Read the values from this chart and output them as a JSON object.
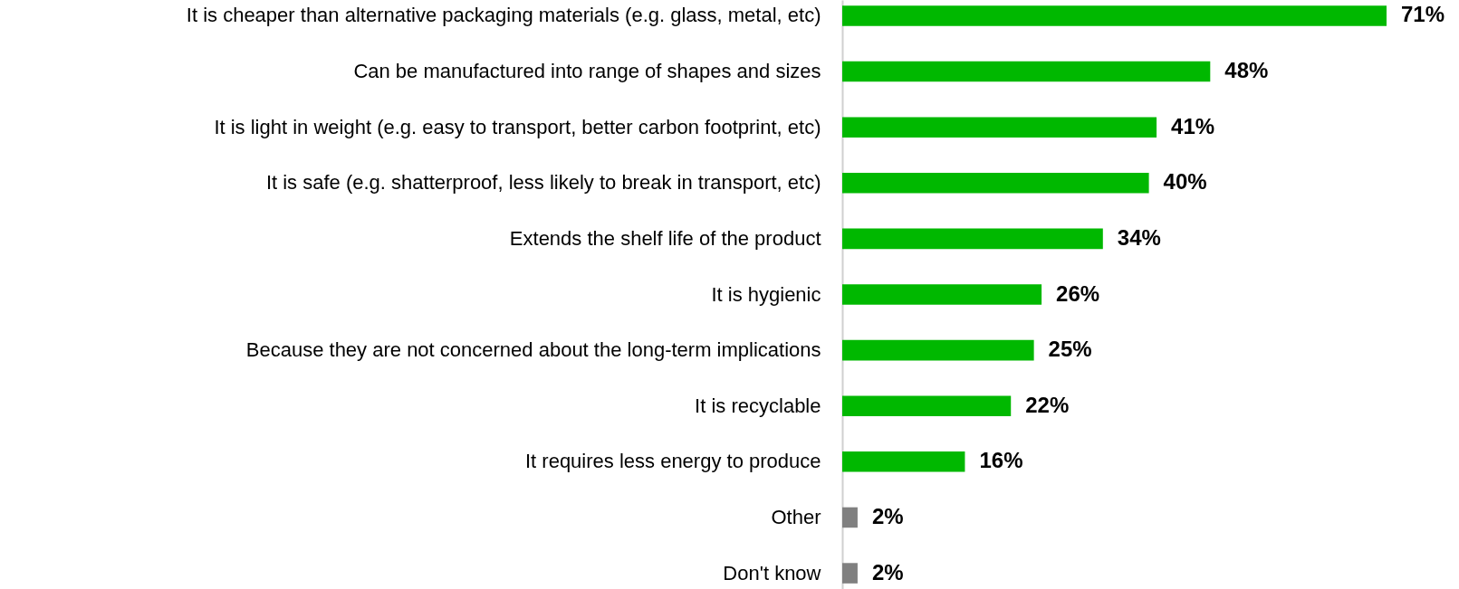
{
  "chart_data": {
    "type": "bar",
    "orientation": "horizontal",
    "categories": [
      "It is cheaper than alternative packaging materials (e.g. glass, metal, etc)",
      "Can be manufactured into range of shapes and sizes",
      "It is light in weight (e.g. easy to transport, better carbon footprint, etc)",
      "It is safe (e.g. shatterproof, less likely to break in transport, etc)",
      "Extends the shelf life of the product",
      "It is hygienic",
      "Because they are not concerned about the long-term implications",
      "It is recyclable",
      "It requires less energy to produce",
      "Other",
      "Don't know"
    ],
    "values": [
      71,
      48,
      41,
      40,
      34,
      26,
      25,
      22,
      16,
      2,
      2
    ],
    "colors": [
      "#00b800",
      "#00b800",
      "#00b800",
      "#00b800",
      "#00b800",
      "#00b800",
      "#00b800",
      "#00b800",
      "#00b800",
      "#808080",
      "#808080"
    ],
    "value_labels": [
      "71%",
      "48%",
      "41%",
      "40%",
      "34%",
      "26%",
      "25%",
      "22%",
      "16%",
      "2%",
      "2%"
    ]
  }
}
